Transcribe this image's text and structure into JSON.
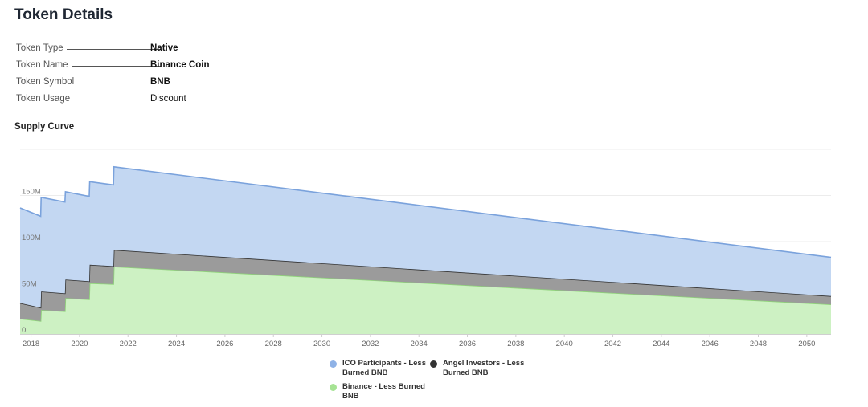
{
  "header": {
    "title": "Token Details"
  },
  "details": [
    {
      "label": "Token Type",
      "value": "Native",
      "bold": true
    },
    {
      "label": "Token Name",
      "value": "Binance Coin",
      "bold": true
    },
    {
      "label": "Token Symbol",
      "value": "BNB",
      "bold": true
    },
    {
      "label": "Token Usage",
      "value": "Discount",
      "bold": false
    }
  ],
  "supply_curve_title": "Supply Curve",
  "chart_data": {
    "type": "area",
    "stacked": true,
    "xlim": [
      2017.55,
      2051
    ],
    "ylim": [
      0,
      200000000
    ],
    "x_ticks": [
      "2018",
      "2020",
      "2022",
      "2024",
      "2026",
      "2028",
      "2030",
      "2032",
      "2034",
      "2036",
      "2038",
      "2040",
      "2042",
      "2044",
      "2046",
      "2048",
      "2050"
    ],
    "y_ticks": [
      {
        "value": 0,
        "label": "0"
      },
      {
        "value": 50000000,
        "label": "50M"
      },
      {
        "value": 100000000,
        "label": "100M"
      },
      {
        "value": 150000000,
        "label": "150M"
      }
    ],
    "legend_position": "bottom",
    "series": [
      {
        "name": "Binance - Less Burned BNB",
        "color": "#cdf1c3",
        "stroke": "#8fd37a",
        "points": [
          [
            2017.55,
            16500000
          ],
          [
            2018.4,
            14000000
          ],
          [
            2018.42,
            26000000
          ],
          [
            2019.4,
            24500000
          ],
          [
            2019.42,
            39000000
          ],
          [
            2020.4,
            37500000
          ],
          [
            2020.42,
            55000000
          ],
          [
            2021.4,
            54000000
          ],
          [
            2021.42,
            73000000
          ],
          [
            2051,
            32000000
          ]
        ]
      },
      {
        "name": "Angel Investors - Less Burned BNB",
        "color": "#9b9b9b",
        "stroke": "#333333",
        "points": [
          [
            2017.55,
            17000000
          ],
          [
            2018.4,
            14500000
          ],
          [
            2018.42,
            20000000
          ],
          [
            2019.4,
            19500000
          ],
          [
            2019.42,
            20000000
          ],
          [
            2020.4,
            19500000
          ],
          [
            2020.42,
            20000000
          ],
          [
            2021.4,
            19500000
          ],
          [
            2021.42,
            18000000
          ],
          [
            2051,
            9000000
          ]
        ]
      },
      {
        "name": "ICO Participants - Less Burned BNB",
        "color": "#c3d7f2",
        "stroke": "#7aa2dc",
        "points": [
          [
            2017.55,
            103000000
          ],
          [
            2018.4,
            99000000
          ],
          [
            2018.42,
            102000000
          ],
          [
            2019.4,
            99000000
          ],
          [
            2019.42,
            95000000
          ],
          [
            2020.4,
            92000000
          ],
          [
            2020.42,
            90000000
          ],
          [
            2021.4,
            88000000
          ],
          [
            2021.42,
            90000000
          ],
          [
            2051,
            42000000
          ]
        ]
      }
    ],
    "legend": [
      {
        "name": "ICO Participants - Less Burned BNB",
        "color": "#8fb2e6"
      },
      {
        "name": "Angel Investors - Less Burned BNB",
        "color": "#333333"
      },
      {
        "name": "Binance - Less Burned BNB",
        "color": "#a6e394"
      }
    ]
  }
}
